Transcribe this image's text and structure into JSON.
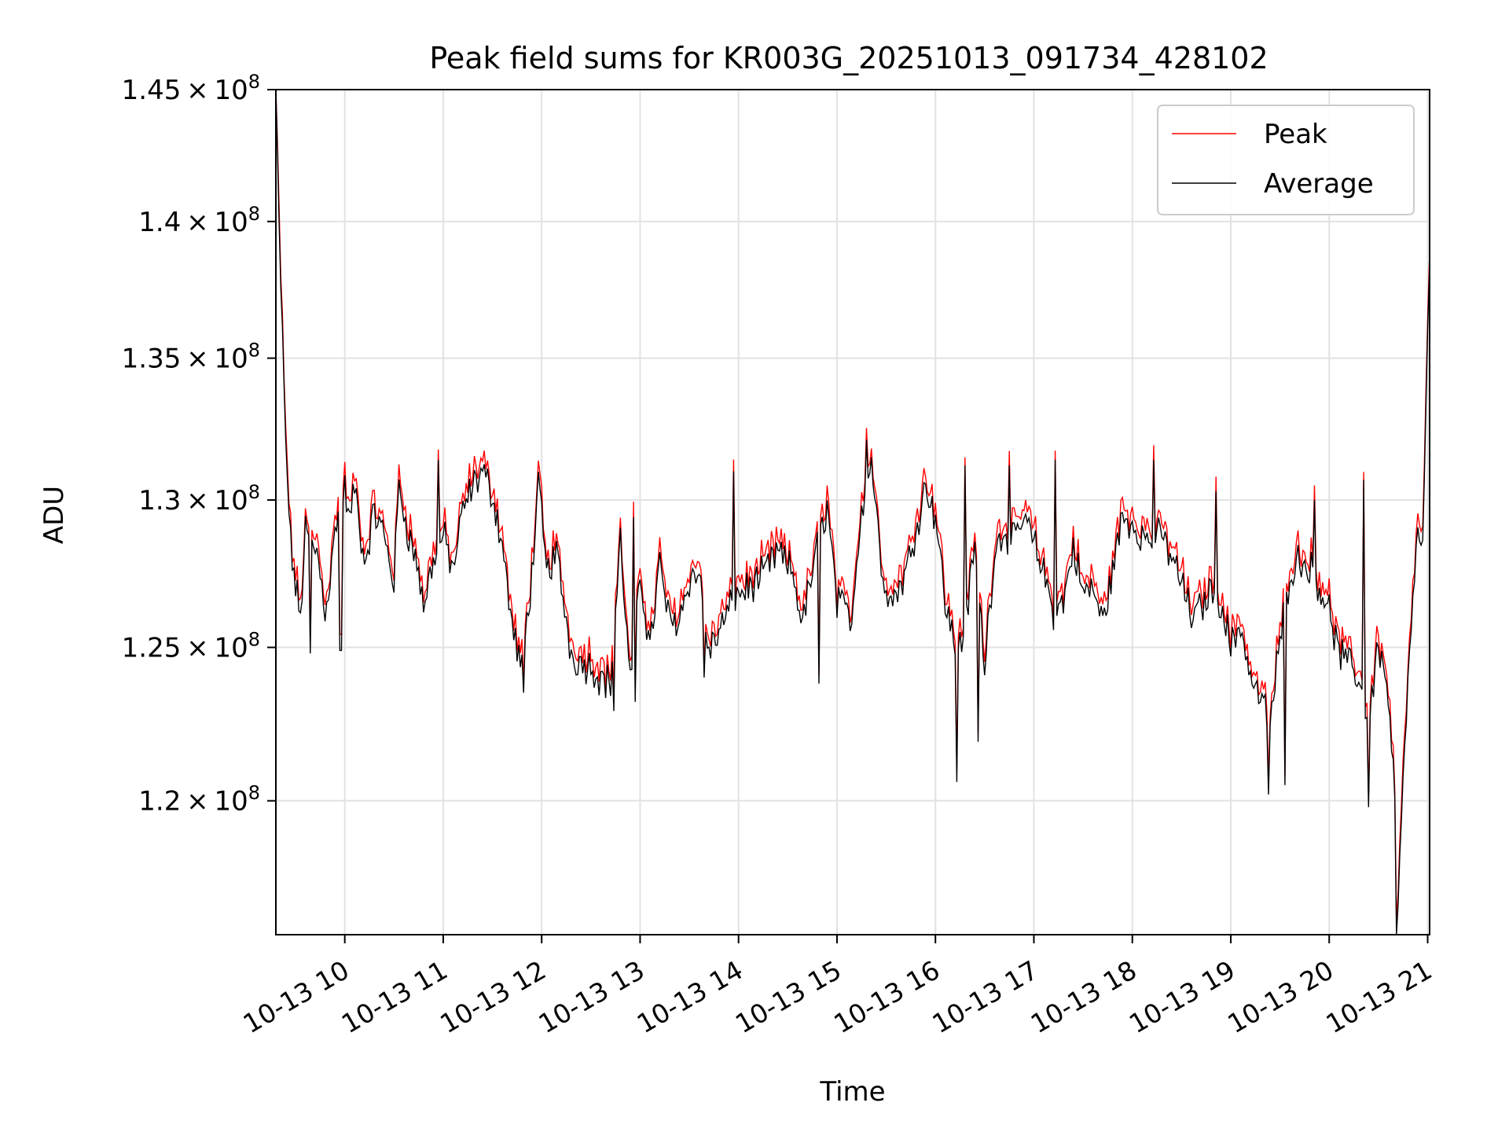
{
  "chart_data": {
    "type": "line",
    "title": "Peak field sums for KR003G_20251013_091734_428102",
    "xlabel": "Time",
    "ylabel": "ADU",
    "y_scale": "log",
    "ylim": [
      115800000,
      145000000
    ],
    "xlim": [
      9.3,
      21.02
    ],
    "grid": true,
    "legend_position": "top-right",
    "x_ticks": [
      {
        "value": 10,
        "label": "10-13 10"
      },
      {
        "value": 11,
        "label": "10-13 11"
      },
      {
        "value": 12,
        "label": "10-13 12"
      },
      {
        "value": 13,
        "label": "10-13 13"
      },
      {
        "value": 14,
        "label": "10-13 14"
      },
      {
        "value": 15,
        "label": "10-13 15"
      },
      {
        "value": 16,
        "label": "10-13 16"
      },
      {
        "value": 17,
        "label": "10-13 17"
      },
      {
        "value": 18,
        "label": "10-13 18"
      },
      {
        "value": 19,
        "label": "10-13 19"
      },
      {
        "value": 20,
        "label": "10-13 20"
      },
      {
        "value": 21,
        "label": "10-13 21"
      }
    ],
    "y_ticks": [
      {
        "value": 120000000,
        "mantissa": "1.2",
        "exp": "8"
      },
      {
        "value": 125000000,
        "mantissa": "1.25",
        "exp": "8"
      },
      {
        "value": 130000000,
        "mantissa": "1.3",
        "exp": "8"
      },
      {
        "value": 135000000,
        "mantissa": "1.35",
        "exp": "8"
      },
      {
        "value": 140000000,
        "mantissa": "1.4",
        "exp": "8"
      },
      {
        "value": 145000000,
        "mantissa": "1.45",
        "exp": "8"
      }
    ],
    "x_unit_note": "hours on 2025-10-13",
    "series": [
      {
        "name": "Peak",
        "color": "#ff0000",
        "offset": 400000
      },
      {
        "name": "Average",
        "color": "#000000",
        "offset": 0
      }
    ],
    "average_keypoints": [
      [
        9.3,
        145000000
      ],
      [
        9.33,
        140000000
      ],
      [
        9.36,
        136500000
      ],
      [
        9.4,
        132000000
      ],
      [
        9.45,
        128500000
      ],
      [
        9.5,
        127000000
      ],
      [
        9.55,
        126000000
      ],
      [
        9.6,
        129000000
      ],
      [
        9.65,
        128500000
      ],
      [
        9.72,
        128200000
      ],
      [
        9.8,
        126300000
      ],
      [
        9.85,
        127200000
      ],
      [
        9.92,
        129500000
      ],
      [
        10.0,
        130400000
      ],
      [
        10.05,
        129200000
      ],
      [
        10.1,
        130500000
      ],
      [
        10.2,
        127800000
      ],
      [
        10.3,
        129600000
      ],
      [
        10.4,
        128800000
      ],
      [
        10.5,
        127200000
      ],
      [
        10.55,
        130500000
      ],
      [
        10.65,
        128800000
      ],
      [
        10.75,
        127600000
      ],
      [
        10.8,
        126300000
      ],
      [
        10.9,
        128000000
      ],
      [
        11.0,
        128800000
      ],
      [
        11.1,
        127600000
      ],
      [
        11.2,
        129600000
      ],
      [
        11.3,
        130500000
      ],
      [
        11.4,
        131000000
      ],
      [
        11.5,
        130200000
      ],
      [
        11.6,
        128500000
      ],
      [
        11.7,
        125700000
      ],
      [
        11.8,
        124200000
      ],
      [
        11.9,
        127500000
      ],
      [
        11.97,
        130500000
      ],
      [
        12.05,
        127500000
      ],
      [
        12.15,
        128200000
      ],
      [
        12.3,
        124800000
      ],
      [
        12.4,
        124500000
      ],
      [
        12.5,
        124400000
      ],
      [
        12.6,
        124000000
      ],
      [
        12.7,
        123800000
      ],
      [
        12.8,
        128600000
      ],
      [
        12.9,
        123800000
      ],
      [
        13.0,
        127500000
      ],
      [
        13.1,
        125000000
      ],
      [
        13.2,
        127800000
      ],
      [
        13.3,
        125800000
      ],
      [
        13.4,
        126000000
      ],
      [
        13.5,
        127300000
      ],
      [
        13.6,
        127500000
      ],
      [
        13.7,
        124800000
      ],
      [
        13.8,
        125500000
      ],
      [
        13.9,
        126200000
      ],
      [
        14.0,
        126800000
      ],
      [
        14.2,
        127200000
      ],
      [
        14.4,
        128200000
      ],
      [
        14.55,
        127500000
      ],
      [
        14.65,
        125800000
      ],
      [
        14.8,
        128400000
      ],
      [
        14.9,
        129800000
      ],
      [
        15.0,
        126500000
      ],
      [
        15.15,
        126000000
      ],
      [
        15.25,
        129800000
      ],
      [
        15.35,
        131400000
      ],
      [
        15.45,
        127800000
      ],
      [
        15.55,
        126500000
      ],
      [
        15.7,
        127500000
      ],
      [
        15.8,
        129000000
      ],
      [
        15.9,
        130500000
      ],
      [
        16.0,
        129500000
      ],
      [
        16.1,
        126500000
      ],
      [
        16.2,
        125000000
      ],
      [
        16.3,
        125600000
      ],
      [
        16.4,
        128500000
      ],
      [
        16.5,
        124400000
      ],
      [
        16.6,
        128300000
      ],
      [
        16.7,
        129000000
      ],
      [
        16.8,
        128500000
      ],
      [
        16.9,
        129400000
      ],
      [
        17.0,
        128500000
      ],
      [
        17.1,
        127500000
      ],
      [
        17.2,
        126200000
      ],
      [
        17.3,
        126500000
      ],
      [
        17.4,
        128400000
      ],
      [
        17.5,
        126800000
      ],
      [
        17.6,
        127000000
      ],
      [
        17.7,
        125800000
      ],
      [
        17.8,
        127600000
      ],
      [
        17.9,
        129400000
      ],
      [
        18.0,
        129200000
      ],
      [
        18.1,
        128800000
      ],
      [
        18.2,
        128500000
      ],
      [
        18.3,
        128800000
      ],
      [
        18.4,
        128000000
      ],
      [
        18.5,
        127200000
      ],
      [
        18.6,
        126000000
      ],
      [
        18.7,
        126300000
      ],
      [
        18.8,
        127000000
      ],
      [
        18.9,
        126600000
      ],
      [
        19.0,
        125000000
      ],
      [
        19.1,
        125800000
      ],
      [
        19.2,
        124000000
      ],
      [
        19.3,
        123300000
      ],
      [
        19.4,
        122500000
      ],
      [
        19.5,
        125200000
      ],
      [
        19.6,
        127500000
      ],
      [
        19.7,
        128000000
      ],
      [
        19.8,
        127700000
      ],
      [
        19.9,
        127100000
      ],
      [
        20.0,
        126200000
      ],
      [
        20.1,
        124800000
      ],
      [
        20.2,
        124400000
      ],
      [
        20.3,
        124000000
      ],
      [
        20.4,
        122500000
      ],
      [
        20.5,
        125200000
      ],
      [
        20.6,
        123400000
      ],
      [
        20.65,
        121000000
      ],
      [
        20.7,
        117000000
      ],
      [
        20.75,
        120500000
      ],
      [
        20.8,
        123500000
      ],
      [
        20.85,
        126800000
      ],
      [
        20.9,
        128800000
      ],
      [
        20.95,
        128200000
      ],
      [
        20.98,
        132500000
      ],
      [
        21.02,
        139000000
      ]
    ],
    "dips": [
      {
        "x": 9.65,
        "y": 124800000
      },
      {
        "x": 9.96,
        "y": 124900000
      },
      {
        "x": 11.82,
        "y": 123500000
      },
      {
        "x": 12.73,
        "y": 122900000
      },
      {
        "x": 12.95,
        "y": 123200000
      },
      {
        "x": 13.65,
        "y": 124000000
      },
      {
        "x": 14.82,
        "y": 123800000
      },
      {
        "x": 16.22,
        "y": 120600000
      },
      {
        "x": 16.44,
        "y": 121900000
      },
      {
        "x": 19.38,
        "y": 120200000
      },
      {
        "x": 19.55,
        "y": 120500000
      },
      {
        "x": 20.4,
        "y": 119800000
      },
      {
        "x": 20.69,
        "y": 115800000
      }
    ],
    "spikes": [
      {
        "x": 10.95,
        "y": 131400000
      },
      {
        "x": 12.93,
        "y": 129400000
      },
      {
        "x": 13.95,
        "y": 131000000
      },
      {
        "x": 15.3,
        "y": 132100000
      },
      {
        "x": 16.3,
        "y": 131200000
      },
      {
        "x": 16.75,
        "y": 131200000
      },
      {
        "x": 17.22,
        "y": 131400000
      },
      {
        "x": 18.22,
        "y": 131400000
      },
      {
        "x": 18.85,
        "y": 130300000
      },
      {
        "x": 19.85,
        "y": 130000000
      },
      {
        "x": 20.35,
        "y": 130700000
      }
    ],
    "noise_amplitude": 500000,
    "peak_sample_interval_minutes": 1
  }
}
